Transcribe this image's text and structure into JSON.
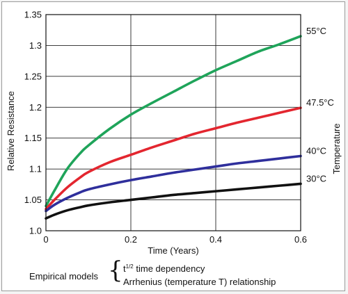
{
  "chart_data": {
    "type": "line",
    "xlabel": "Time (Years)",
    "ylabel": "Relative Resistance",
    "y2label": "Temperature",
    "xlim": [
      0,
      0.6
    ],
    "ylim": [
      1.0,
      1.35
    ],
    "x_ticks": [
      "0",
      "0.2",
      "0.4",
      "0.6"
    ],
    "y_ticks": [
      "1.0",
      "1.05",
      "1.1",
      "1.15",
      "1.2",
      "1.25",
      "1.3",
      "1.35"
    ],
    "grid": true,
    "series": [
      {
        "name": "55°C",
        "color": "#1fa45a",
        "x": [
          0,
          0.02,
          0.05,
          0.08,
          0.1,
          0.15,
          0.2,
          0.25,
          0.3,
          0.35,
          0.4,
          0.45,
          0.5,
          0.55,
          0.6
        ],
        "y": [
          1.04,
          1.065,
          1.1,
          1.125,
          1.138,
          1.165,
          1.188,
          1.207,
          1.225,
          1.243,
          1.26,
          1.275,
          1.29,
          1.302,
          1.315
        ]
      },
      {
        "name": "47.5°C",
        "color": "#e3262f",
        "x": [
          0,
          0.02,
          0.05,
          0.08,
          0.1,
          0.15,
          0.2,
          0.25,
          0.3,
          0.35,
          0.4,
          0.45,
          0.5,
          0.55,
          0.6
        ],
        "y": [
          1.035,
          1.05,
          1.07,
          1.086,
          1.095,
          1.111,
          1.123,
          1.135,
          1.146,
          1.157,
          1.166,
          1.175,
          1.183,
          1.191,
          1.199
        ]
      },
      {
        "name": "40°C",
        "color": "#2f2f9c",
        "x": [
          0,
          0.02,
          0.05,
          0.08,
          0.1,
          0.15,
          0.2,
          0.25,
          0.3,
          0.35,
          0.4,
          0.45,
          0.5,
          0.55,
          0.6
        ],
        "y": [
          1.032,
          1.042,
          1.053,
          1.062,
          1.067,
          1.075,
          1.082,
          1.088,
          1.094,
          1.099,
          1.104,
          1.109,
          1.113,
          1.117,
          1.121
        ]
      },
      {
        "name": "30°C",
        "color": "#111111",
        "x": [
          0,
          0.02,
          0.05,
          0.08,
          0.1,
          0.15,
          0.2,
          0.25,
          0.3,
          0.35,
          0.4,
          0.45,
          0.5,
          0.55,
          0.6
        ],
        "y": [
          1.02,
          1.026,
          1.033,
          1.038,
          1.041,
          1.046,
          1.05,
          1.054,
          1.058,
          1.061,
          1.064,
          1.067,
          1.07,
          1.073,
          1.076
        ]
      }
    ]
  },
  "caption": {
    "lead": "Empirical models",
    "brace": "{",
    "line1_base": "t",
    "line1_sup": "1/2",
    "line1_rest": " time dependency",
    "line2": "Arrhenius (temperature T) relationship"
  }
}
